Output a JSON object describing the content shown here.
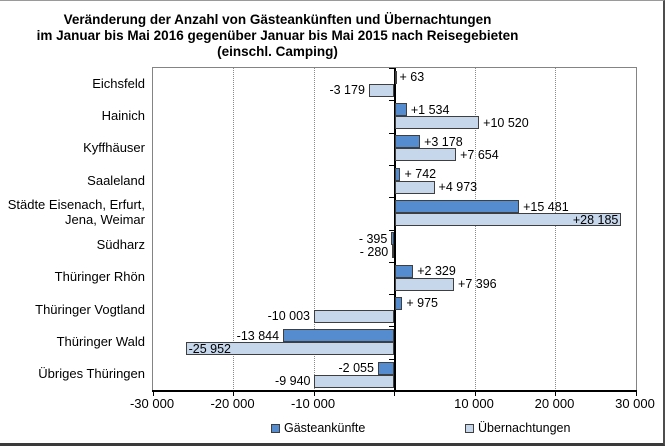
{
  "chart_data": {
    "type": "bar",
    "orientation": "horizontal",
    "title": "Veränderung der Anzahl von Gästeankünften und Übernachtungen im Januar bis Mai 2016 gegenüber Januar bis Mai 2015 nach Reisegebieten (einschl. Camping)",
    "title_lines": [
      "Veränderung der Anzahl von Gästeankünften und Übernachtungen",
      "im Januar bis Mai 2016 gegenüber Januar bis Mai 2015 nach Reisegebieten",
      "(einschl. Camping)"
    ],
    "categories": [
      "Eichsfeld",
      "Hainich",
      "Kyffhäuser",
      "Saaleland",
      "Städte Eisenach, Erfurt,\nJena, Weimar",
      "Südharz",
      "Thüringer Rhön",
      "Thüringer Vogtland",
      "Thüringer Wald",
      "Übriges Thüringen"
    ],
    "series": [
      {
        "name": "Gästeankünfte",
        "color": "#558CD0",
        "values": [
          63,
          1534,
          3178,
          742,
          15481,
          -395,
          2329,
          975,
          -13844,
          -2055
        ],
        "labels": [
          "+ 63",
          "+1 534",
          "+3 178",
          "+ 742",
          "+15 481",
          "- 395",
          "+2 329",
          "+ 975",
          "-13 844",
          "-2 055"
        ],
        "label_placement": [
          "out",
          "out",
          "out",
          "out",
          "out",
          "out",
          "out",
          "out",
          "out",
          "out"
        ]
      },
      {
        "name": "Übernachtungen",
        "color": "#C6D6EB",
        "values": [
          -3179,
          10520,
          7654,
          4973,
          28185,
          -280,
          7396,
          -10003,
          -25952,
          -9940
        ],
        "labels": [
          "-3 179",
          "+10 520",
          "+7 654",
          "+4 973",
          "+28 185",
          "- 280",
          "+7 396",
          "-10 003",
          "-25 952",
          "-9 940"
        ],
        "label_placement": [
          "out",
          "out",
          "out",
          "out",
          "in",
          "out",
          "out",
          "out",
          "in",
          "out"
        ]
      }
    ],
    "xlim": [
      -30000,
      30000
    ],
    "x_tick_values": [
      -30000,
      -20000,
      -10000,
      0,
      10000,
      20000,
      30000
    ],
    "x_tick_labels": [
      "-30 000",
      "-20 000",
      "-10 000",
      "",
      "10 000",
      "20 000",
      "30 000"
    ],
    "gridline_values": [
      -20000,
      -10000,
      10000,
      20000
    ],
    "legend_position": "bottom",
    "grid": "vertical-dotted"
  }
}
